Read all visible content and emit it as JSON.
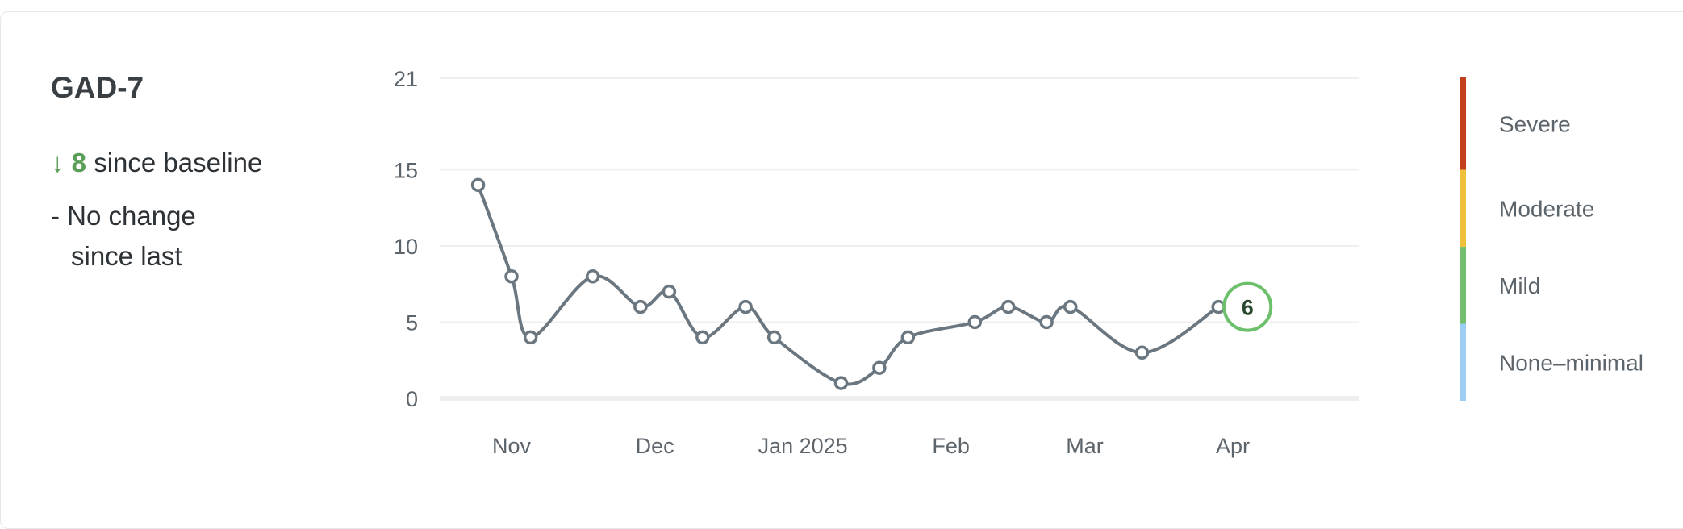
{
  "summary": {
    "title": "GAD-7",
    "arrow": "↓",
    "delta": "8",
    "delta_text": " since baseline",
    "change_line1": "- No change",
    "change_line2": "since last"
  },
  "chart_data": {
    "type": "line",
    "title": "",
    "xlabel": "",
    "ylabel": "",
    "ylim": [
      0,
      21
    ],
    "y_ticks": [
      0,
      5,
      10,
      15,
      21
    ],
    "x_ticks": [
      {
        "label": "Nov",
        "date": "2024-11-01"
      },
      {
        "label": "Dec",
        "date": "2024-12-01"
      },
      {
        "label": "Jan 2025",
        "date": "2025-01-01"
      },
      {
        "label": "Feb",
        "date": "2025-02-01"
      },
      {
        "label": "Mar",
        "date": "2025-03-01"
      },
      {
        "label": "Apr",
        "date": "2025-04-01"
      }
    ],
    "points": [
      {
        "date": "2024-10-25",
        "value": 14
      },
      {
        "date": "2024-11-01",
        "value": 8
      },
      {
        "date": "2024-11-05",
        "value": 4
      },
      {
        "date": "2024-11-18",
        "value": 8
      },
      {
        "date": "2024-11-28",
        "value": 6
      },
      {
        "date": "2024-12-04",
        "value": 7
      },
      {
        "date": "2024-12-11",
        "value": 4
      },
      {
        "date": "2024-12-20",
        "value": 6
      },
      {
        "date": "2024-12-26",
        "value": 4
      },
      {
        "date": "2025-01-09",
        "value": 1
      },
      {
        "date": "2025-01-17",
        "value": 2
      },
      {
        "date": "2025-01-23",
        "value": 4
      },
      {
        "date": "2025-02-06",
        "value": 5
      },
      {
        "date": "2025-02-13",
        "value": 6
      },
      {
        "date": "2025-02-21",
        "value": 5
      },
      {
        "date": "2025-02-26",
        "value": 6
      },
      {
        "date": "2025-03-13",
        "value": 3
      },
      {
        "date": "2025-03-29",
        "value": 6
      }
    ],
    "latest_value": "6",
    "grid": true,
    "line_color": "#6b7780",
    "latest_marker_color": "#6cc06b",
    "severity_bands": [
      {
        "label": "Severe",
        "min": 15,
        "max": 21,
        "color": "#c2401e"
      },
      {
        "label": "Moderate",
        "min": 10,
        "max": 15,
        "color": "#f0c03a"
      },
      {
        "label": "Mild",
        "min": 5,
        "max": 10,
        "color": "#74be6f"
      },
      {
        "label": "None–minimal",
        "min": 0,
        "max": 5,
        "color": "#9ccdf5"
      }
    ]
  }
}
